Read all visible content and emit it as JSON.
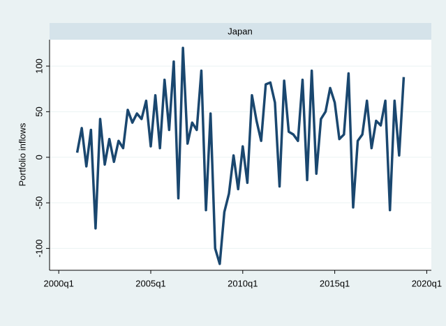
{
  "chart_data": {
    "type": "line",
    "facet_title": "Japan",
    "ylabel": "Portfolio inflows",
    "x": [
      "2001q1",
      "2001q2",
      "2001q3",
      "2001q4",
      "2002q1",
      "2002q2",
      "2002q3",
      "2002q4",
      "2003q1",
      "2003q2",
      "2003q3",
      "2003q4",
      "2004q1",
      "2004q2",
      "2004q3",
      "2004q4",
      "2005q1",
      "2005q2",
      "2005q3",
      "2005q4",
      "2006q1",
      "2006q2",
      "2006q3",
      "2006q4",
      "2007q1",
      "2007q2",
      "2007q3",
      "2007q4",
      "2008q1",
      "2008q2",
      "2008q3",
      "2008q4",
      "2009q1",
      "2009q2",
      "2009q3",
      "2009q4",
      "2010q1",
      "2010q2",
      "2010q3",
      "2010q4",
      "2011q1",
      "2011q2",
      "2011q3",
      "2011q4",
      "2012q1",
      "2012q2",
      "2012q3",
      "2012q4",
      "2013q1",
      "2013q2",
      "2013q3",
      "2013q4",
      "2014q1",
      "2014q2",
      "2014q3",
      "2014q4",
      "2015q1",
      "2015q2",
      "2015q3",
      "2015q4",
      "2016q1",
      "2016q2",
      "2016q3",
      "2016q4",
      "2017q1",
      "2017q2",
      "2017q3",
      "2017q4",
      "2018q1",
      "2018q2",
      "2018q3",
      "2018q4"
    ],
    "series": [
      {
        "name": "Portfolio inflows",
        "color": "#1a476f",
        "values": [
          5,
          32,
          -10,
          30,
          -78,
          42,
          -8,
          20,
          -5,
          18,
          10,
          52,
          38,
          48,
          42,
          62,
          12,
          68,
          10,
          85,
          30,
          105,
          -45,
          120,
          15,
          38,
          30,
          95,
          -58,
          48,
          -100,
          -117,
          -60,
          -40,
          2,
          -35,
          12,
          -28,
          68,
          40,
          18,
          80,
          82,
          60,
          -32,
          84,
          28,
          25,
          18,
          85,
          -25,
          95,
          -18,
          42,
          50,
          76,
          60,
          20,
          25,
          92,
          -55,
          18,
          25,
          62,
          10,
          40,
          35,
          62,
          -58,
          62,
          2,
          88
        ]
      }
    ],
    "xlim": [
      "1999q3",
      "2020q2"
    ],
    "xticks": [
      "2000q1",
      "2005q1",
      "2010q1",
      "2015q1",
      "2020q1"
    ],
    "ylim": [
      -124,
      129
    ],
    "yticks": [
      -100,
      -50,
      0,
      50,
      100
    ],
    "grid": true
  }
}
